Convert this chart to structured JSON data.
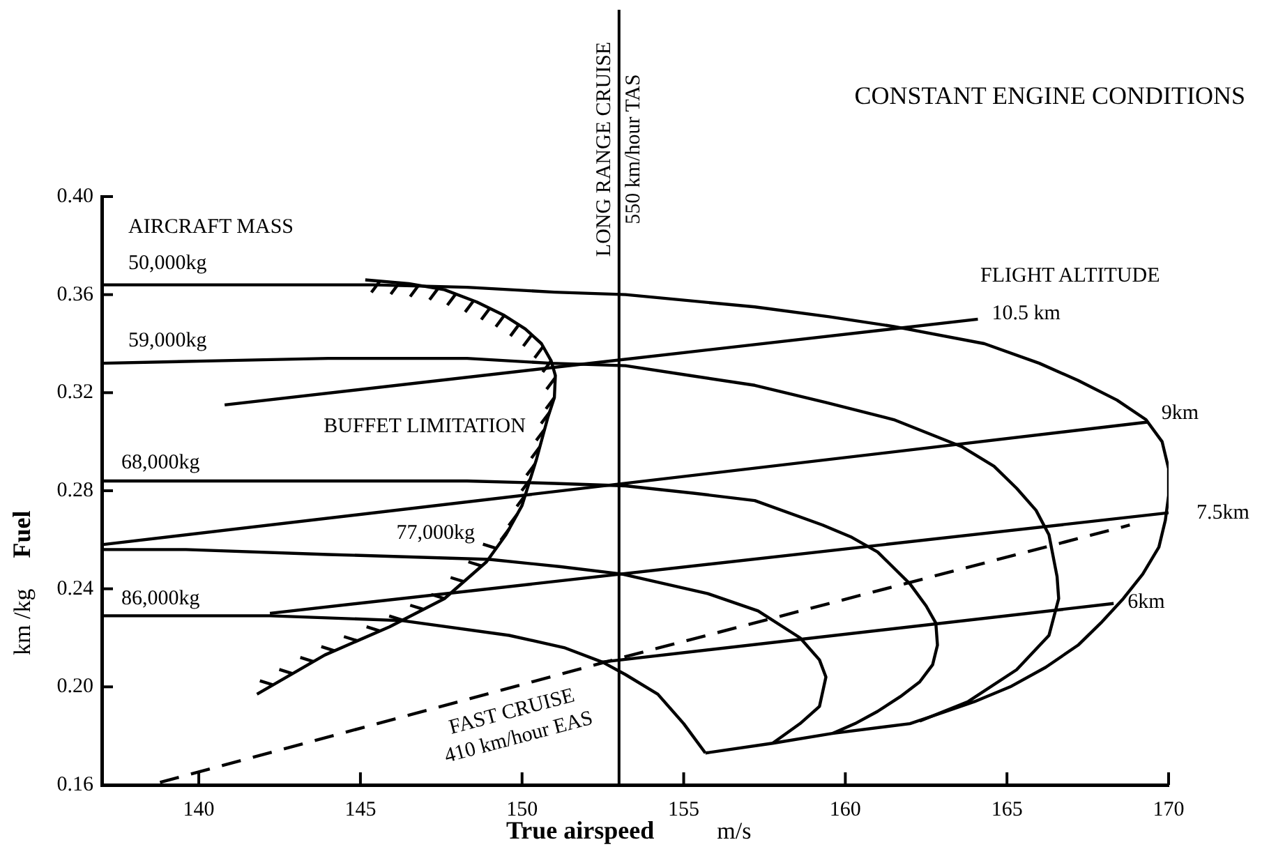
{
  "chart_data": {
    "type": "line",
    "title": "CONSTANT ENGINE CONDITIONS",
    "xlabel": "True airspeed m/s",
    "ylabel": "km /kg Fuel",
    "xlim": [
      137,
      170
    ],
    "xticks": [
      140,
      145,
      150,
      155,
      160,
      165,
      170
    ],
    "ylim": [
      0.16,
      0.4
    ],
    "yticks": [
      0.16,
      {
        "value": 0.2,
        "label": "0.20"
      },
      0.24,
      0.28,
      0.32,
      0.36,
      {
        "value": 0.4,
        "label": "0.40"
      }
    ],
    "grid": false,
    "legend": false,
    "marker": "none",
    "line_style": "solid",
    "annotations": [
      "AIRCRAFT MASS",
      "FLIGHT ALTITUDE"
    ],
    "ref_lines": [
      {
        "axis": "x",
        "value": 153,
        "label": "LONG RANGE CRUISE\n550 km/hour TAS",
        "color": "#000000"
      }
    ],
    "series": [
      {
        "name": "50,000kg",
        "color": "#000000",
        "x": [
          137,
          141,
          145.4,
          148.3,
          151,
          153.2,
          157.2,
          159.5,
          161.5,
          164.3,
          166,
          167.2,
          168.4,
          169.3,
          169.8,
          170,
          170,
          169.9,
          169.7,
          169.2,
          168.6,
          167.9,
          167.2,
          166.2,
          165.1,
          164,
          162.9,
          162,
          159.6,
          157.75,
          155.67
        ],
        "values": [
          0.364,
          0.364,
          0.364,
          0.363,
          0.361,
          0.36,
          0.355,
          0.351,
          0.347,
          0.34,
          0.332,
          0.325,
          0.317,
          0.309,
          0.3,
          0.289,
          0.278,
          0.268,
          0.257,
          0.246,
          0.236,
          0.226,
          0.217,
          0.208,
          0.2,
          0.194,
          0.189,
          0.185,
          0.181,
          0.177,
          0.173
        ]
      },
      {
        "name": "59,000kg",
        "color": "#000000",
        "x": [
          137,
          140.5,
          144,
          148.3,
          150.9,
          153.2,
          155.2,
          157.2,
          159.4,
          161.5,
          163.6,
          164.6,
          165.3,
          165.9,
          166.3,
          166.55,
          166.6,
          166.3,
          165.3,
          163.8,
          162.3
        ],
        "values": [
          0.332,
          0.333,
          0.334,
          0.334,
          0.332,
          0.331,
          0.327,
          0.323,
          0.316,
          0.309,
          0.298,
          0.29,
          0.281,
          0.272,
          0.262,
          0.245,
          0.236,
          0.221,
          0.207,
          0.194,
          0.186
        ]
      },
      {
        "name": "68,000kg",
        "color": "#000000",
        "x": [
          137,
          142,
          148.3,
          151,
          153.2,
          155.3,
          157.2,
          159.3,
          160.2,
          161,
          162,
          162.5,
          162.8,
          162.85,
          162.7,
          162.3,
          161.7,
          161,
          160.3,
          159.6
        ],
        "values": [
          0.284,
          0.284,
          0.284,
          0.283,
          0.282,
          0.279,
          0.276,
          0.266,
          0.261,
          0.255,
          0.242,
          0.233,
          0.226,
          0.217,
          0.209,
          0.202,
          0.196,
          0.19,
          0.185,
          0.181
        ]
      },
      {
        "name": "77,000kg",
        "color": "#000000",
        "x": [
          137,
          139.6,
          144,
          149,
          151.2,
          153.1,
          155.75,
          157.3,
          158.6,
          159.2,
          159.4,
          159.2,
          158.6,
          157.75
        ],
        "values": [
          0.256,
          0.256,
          0.254,
          0.252,
          0.249,
          0.246,
          0.238,
          0.231,
          0.22,
          0.211,
          0.204,
          0.192,
          0.185,
          0.177
        ]
      },
      {
        "name": "86,000kg",
        "color": "#000000",
        "x": [
          137,
          142.2,
          146.3,
          149.6,
          151.3,
          152.5,
          153.2,
          154.2,
          155,
          155.67
        ],
        "values": [
          0.229,
          0.229,
          0.227,
          0.221,
          0.216,
          0.21,
          0.205,
          0.197,
          0.185,
          0.173
        ]
      },
      {
        "name": "10.5 km",
        "color": "#000000",
        "x": [
          140.8,
          164.1
        ],
        "values": [
          0.315,
          0.35
        ]
      },
      {
        "name": "9km",
        "color": "#000000",
        "x": [
          137,
          169.35
        ],
        "values": [
          0.258,
          0.308
        ]
      },
      {
        "name": "7.5km",
        "color": "#000000",
        "x": [
          142.2,
          170
        ],
        "values": [
          0.23,
          0.271
        ]
      },
      {
        "name": "6km",
        "color": "#000000",
        "x": [
          152.4,
          168.3
        ],
        "values": [
          0.21,
          0.234
        ]
      },
      {
        "name": "BUFFET LIMITATION",
        "color": "#000000",
        "x": [
          145.15,
          146.5,
          147.6,
          148.6,
          149.45,
          150.1,
          150.6,
          150.9,
          151.03,
          151,
          150.8,
          150.45,
          150,
          149.5,
          148.9,
          147.6,
          145.9,
          143.9,
          141.8
        ],
        "values": [
          0.366,
          0.3645,
          0.362,
          0.357,
          0.3515,
          0.346,
          0.34,
          0.333,
          0.327,
          0.318,
          0.31,
          0.293,
          0.274,
          0.262,
          0.251,
          0.236,
          0.2245,
          0.213,
          0.197
        ]
      },
      {
        "name": "FAST CRUISE\n410 km/hour EAS",
        "color": "#000000",
        "line_style": "dashed",
        "x": [
          138.8,
          153.1,
          168.8
        ],
        "values": [
          0.161,
          0.212,
          0.266
        ]
      },
      {
        "color": "#000000",
        "x": [
          145.6,
          145.34,
          null,
          146.2,
          145.94,
          null,
          146.8,
          146.54,
          null,
          147.4,
          147.14,
          null,
          147.95,
          147.69,
          null,
          148.5,
          148.24,
          null,
          149,
          148.74,
          null,
          149.45,
          149.19,
          null,
          149.9,
          149.64,
          null,
          150.3,
          150.04,
          null,
          150.65,
          150.39,
          null,
          150.9,
          150.64,
          null,
          151.02,
          150.76,
          null,
          151,
          150.74,
          null,
          150.85,
          150.59,
          null,
          150.7,
          150.44,
          null,
          150.55,
          150.29,
          null,
          150.4,
          150.14,
          null,
          150.25,
          149.99,
          null,
          150.1,
          149.84,
          null,
          149.85,
          149.59,
          null,
          149.6,
          149.34,
          null,
          149.2,
          148.79,
          null,
          148.75,
          148.34,
          null,
          148.2,
          147.79,
          null,
          147.6,
          147.19,
          null,
          146.95,
          146.54,
          null,
          146.3,
          145.89,
          null,
          145.6,
          145.19,
          null,
          144.9,
          144.49,
          null,
          144.2,
          143.79,
          null,
          143.55,
          143.14,
          null,
          142.9,
          142.49,
          null,
          142.3,
          141.89
        ],
        "values": [
          0.3655,
          0.3609,
          null,
          0.3648,
          0.3602,
          null,
          0.3638,
          0.3592,
          null,
          0.3625,
          0.3579,
          null,
          0.3603,
          0.3557,
          null,
          0.3575,
          0.3529,
          null,
          0.3544,
          0.3498,
          null,
          0.3515,
          0.3469,
          null,
          0.3477,
          0.3431,
          null,
          0.3436,
          0.339,
          null,
          0.3388,
          0.3342,
          null,
          0.333,
          0.3284,
          null,
          0.326,
          0.3214,
          null,
          0.318,
          0.3134,
          null,
          0.312,
          0.3074,
          null,
          0.3051,
          0.3005,
          null,
          0.2979,
          0.2933,
          null,
          0.2909,
          0.2863,
          null,
          0.2846,
          0.28,
          null,
          0.2782,
          0.2736,
          null,
          0.2704,
          0.2658,
          null,
          0.2644,
          0.2598,
          null,
          0.2565,
          0.2582,
          null,
          0.2493,
          0.251,
          null,
          0.2429,
          0.2446,
          null,
          0.236,
          0.2377,
          null,
          0.2316,
          0.2333,
          null,
          0.2272,
          0.2289,
          null,
          0.2228,
          0.2245,
          null,
          0.2188,
          0.2205,
          null,
          0.2147,
          0.2164,
          null,
          0.2103,
          0.212,
          null,
          0.2054,
          0.2071,
          null,
          0.2008,
          0.2025
        ]
      }
    ]
  }
}
